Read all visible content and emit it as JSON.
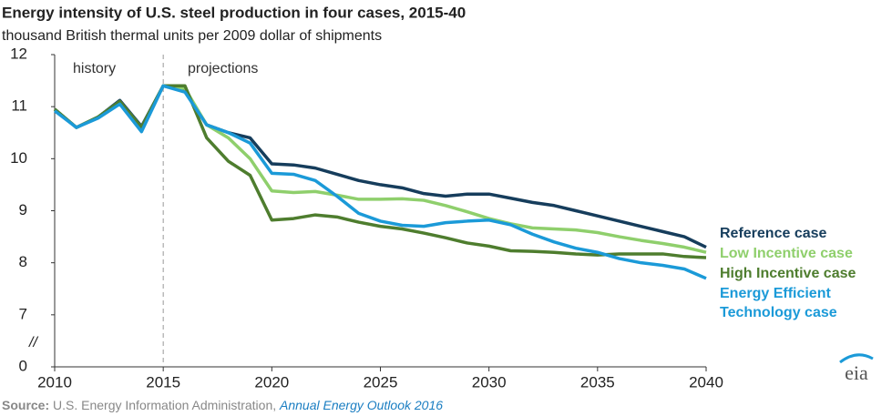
{
  "chart_data": {
    "type": "line",
    "title": "Energy intensity of U.S. steel production in four cases, 2015-40",
    "subtitle": "thousand British thermal units per 2009 dollar of shipments",
    "annotations": [
      "history",
      "projections"
    ],
    "axis_break": {
      "label": "//",
      "range": [
        0,
        6
      ]
    },
    "source": {
      "label": "Source:",
      "text": "U.S. Energy Information Administration,",
      "publication": "Annual Energy Outlook 2016"
    },
    "logo": "eia",
    "x": [
      2010,
      2011,
      2012,
      2013,
      2014,
      2015,
      2016,
      2017,
      2018,
      2019,
      2020,
      2021,
      2022,
      2023,
      2024,
      2025,
      2026,
      2027,
      2028,
      2029,
      2030,
      2031,
      2032,
      2033,
      2034,
      2035,
      2036,
      2037,
      2038,
      2039,
      2040
    ],
    "xlim": [
      2010,
      2040
    ],
    "xticks": [
      2010,
      2015,
      2020,
      2025,
      2030,
      2035,
      2040
    ],
    "ylim": [
      0,
      12
    ],
    "yticks": [
      0,
      7,
      8,
      9,
      10,
      11,
      12
    ],
    "series": [
      {
        "name": "Reference case",
        "color": "#163d5c",
        "values": [
          10.95,
          10.6,
          10.8,
          11.12,
          10.62,
          11.4,
          11.3,
          10.65,
          10.5,
          10.4,
          9.9,
          9.88,
          9.82,
          9.7,
          9.58,
          9.5,
          9.44,
          9.33,
          9.28,
          9.32,
          9.32,
          9.24,
          9.16,
          9.1,
          9.0,
          8.9,
          8.8,
          8.7,
          8.6,
          8.5,
          8.3
        ]
      },
      {
        "name": "Low Incentive case",
        "color": "#8fcf6c",
        "values": [
          10.95,
          10.6,
          10.8,
          11.1,
          10.6,
          11.4,
          11.35,
          10.65,
          10.4,
          10.0,
          9.38,
          9.35,
          9.37,
          9.3,
          9.22,
          9.22,
          9.23,
          9.2,
          9.1,
          8.98,
          8.85,
          8.75,
          8.67,
          8.65,
          8.63,
          8.58,
          8.5,
          8.43,
          8.37,
          8.3,
          8.2
        ]
      },
      {
        "name": "High Incentive case",
        "color": "#4e7d2e",
        "values": [
          10.95,
          10.6,
          10.8,
          11.1,
          10.6,
          11.4,
          11.4,
          10.4,
          9.95,
          9.68,
          8.82,
          8.85,
          8.92,
          8.88,
          8.78,
          8.7,
          8.65,
          8.57,
          8.48,
          8.38,
          8.32,
          8.23,
          8.22,
          8.2,
          8.17,
          8.15,
          8.17,
          8.17,
          8.17,
          8.12,
          8.1
        ]
      },
      {
        "name": "Energy Efficient Technology case",
        "color": "#1b9ad8",
        "values": [
          10.92,
          10.6,
          10.78,
          11.05,
          10.52,
          11.4,
          11.28,
          10.65,
          10.5,
          10.3,
          9.72,
          9.7,
          9.58,
          9.28,
          8.95,
          8.8,
          8.72,
          8.7,
          8.77,
          8.8,
          8.82,
          8.73,
          8.55,
          8.4,
          8.28,
          8.2,
          8.08,
          8.0,
          7.95,
          7.88,
          7.7
        ]
      }
    ]
  }
}
